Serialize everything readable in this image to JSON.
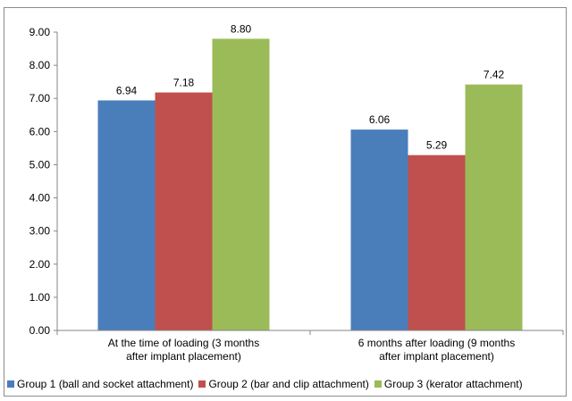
{
  "chart_data": {
    "type": "bar",
    "categories": [
      "At the time of loading (3 months after implant placement)",
      "6 months after loading (9 months after implant placement)"
    ],
    "category_label_lines": [
      [
        "At the time of loading (3 months",
        "after implant placement)"
      ],
      [
        "6 months after loading (9 months",
        "after implant placement)"
      ]
    ],
    "series": [
      {
        "name": "Group 1 (ball and socket attachment)",
        "values": [
          6.94,
          6.06
        ],
        "color": "#4a7ebb"
      },
      {
        "name": "Group 2 (bar and clip attachment)",
        "values": [
          7.18,
          5.29
        ],
        "color": "#c0504d"
      },
      {
        "name": "Group 3 (kerator attachment)",
        "values": [
          8.8,
          7.42
        ],
        "color": "#9bbb59"
      }
    ],
    "value_labels": [
      [
        "6.94",
        "6.06"
      ],
      [
        "7.18",
        "5.29"
      ],
      [
        "8.80",
        "7.42"
      ]
    ],
    "y_ticks": [
      "0.00",
      "1.00",
      "2.00",
      "3.00",
      "4.00",
      "5.00",
      "6.00",
      "7.00",
      "8.00",
      "9.00"
    ],
    "ylim": [
      0,
      9
    ],
    "grid": false,
    "legend_position": "bottom"
  }
}
